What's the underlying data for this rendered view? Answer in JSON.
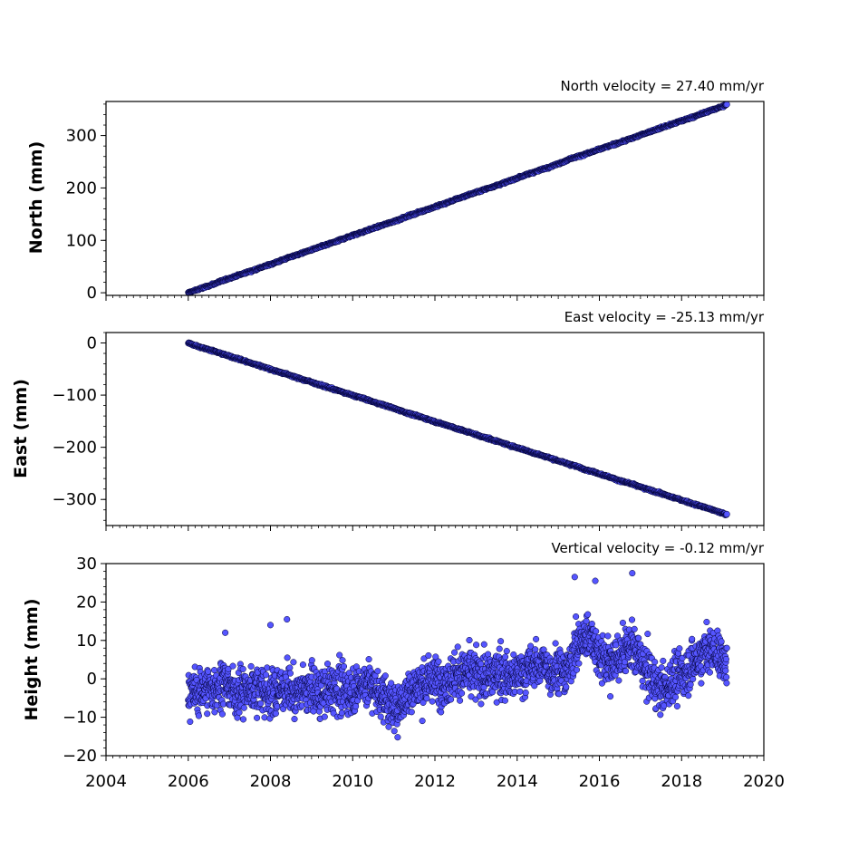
{
  "chart_data": [
    {
      "type": "scatter",
      "title": "North velocity = 27.40 mm/yr",
      "ylabel": "North (mm)",
      "xlabel": "",
      "xlim": [
        2004,
        2020
      ],
      "ylim": [
        -5,
        365
      ],
      "yticks": [
        0,
        100,
        200,
        300
      ],
      "ytick_labels": [
        "0",
        "100",
        "200",
        "300"
      ],
      "grid": false,
      "marker_color": "#5555ff",
      "marker_edge": "#000033",
      "series": [
        {
          "x": [
            2006.0,
            2006.3,
            2006.6,
            2006.9,
            2007.2,
            2007.5,
            2007.8,
            2008.1,
            2008.4,
            2008.7,
            2009.0,
            2009.3,
            2009.6,
            2009.9,
            2010.2,
            2010.5,
            2010.8,
            2011.1,
            2011.4,
            2011.7,
            2012.0,
            2012.3,
            2012.6,
            2012.9,
            2013.2,
            2013.5,
            2013.8,
            2014.1,
            2014.4,
            2014.7,
            2015.0,
            2015.3,
            2015.6,
            2015.9,
            2016.2,
            2016.5,
            2016.8,
            2017.1,
            2017.4,
            2017.7,
            2018.0,
            2018.3,
            2018.6,
            2018.9,
            2019.1
          ],
          "y": [
            0,
            8,
            16,
            25,
            33,
            41,
            49,
            57,
            66,
            74,
            82,
            90,
            98,
            107,
            115,
            123,
            131,
            139,
            148,
            156,
            164,
            172,
            181,
            189,
            197,
            205,
            213,
            222,
            230,
            238,
            246,
            256,
            263,
            271,
            279,
            287,
            295,
            304,
            312,
            320,
            328,
            336,
            345,
            353,
            359
          ]
        }
      ]
    },
    {
      "type": "scatter",
      "title": "East velocity = -25.13 mm/yr",
      "ylabel": "East (mm)",
      "xlabel": "",
      "xlim": [
        2004,
        2020
      ],
      "ylim": [
        -350,
        20
      ],
      "yticks": [
        0,
        -100,
        -200,
        -300
      ],
      "ytick_labels": [
        "0",
        "−100",
        "−200",
        "−300"
      ],
      "grid": false,
      "marker_color": "#5555ff",
      "marker_edge": "#000033",
      "series": [
        {
          "x": [
            2006.0,
            2006.3,
            2006.6,
            2006.9,
            2007.2,
            2007.5,
            2007.8,
            2008.1,
            2008.4,
            2008.7,
            2009.0,
            2009.3,
            2009.6,
            2009.9,
            2010.2,
            2010.5,
            2010.8,
            2011.1,
            2011.4,
            2011.7,
            2012.0,
            2012.3,
            2012.6,
            2012.9,
            2013.2,
            2013.5,
            2013.8,
            2014.1,
            2014.4,
            2014.7,
            2015.0,
            2015.3,
            2015.6,
            2015.9,
            2016.2,
            2016.5,
            2016.8,
            2017.1,
            2017.4,
            2017.7,
            2018.0,
            2018.3,
            2018.6,
            2018.9,
            2019.1
          ],
          "y": [
            0,
            -8,
            -15,
            -23,
            -30,
            -38,
            -45,
            -53,
            -60,
            -68,
            -75,
            -83,
            -90,
            -98,
            -105,
            -113,
            -120,
            -128,
            -136,
            -143,
            -151,
            -158,
            -166,
            -173,
            -181,
            -188,
            -196,
            -203,
            -211,
            -218,
            -226,
            -233,
            -241,
            -248,
            -256,
            -264,
            -271,
            -279,
            -286,
            -294,
            -301,
            -309,
            -316,
            -324,
            -329
          ]
        }
      ]
    },
    {
      "type": "scatter",
      "title": "Vertical velocity = -0.12 mm/yr",
      "ylabel": "Height (mm)",
      "xlabel": "",
      "xlim": [
        2004,
        2020
      ],
      "ylim": [
        -20,
        30
      ],
      "yticks": [
        -20,
        -10,
        0,
        10,
        20,
        30
      ],
      "ytick_labels": [
        "−20",
        "−10",
        "0",
        "10",
        "20",
        "30"
      ],
      "xticks": [
        2004,
        2006,
        2008,
        2010,
        2012,
        2014,
        2016,
        2018,
        2020
      ],
      "xtick_labels": [
        "2004",
        "2006",
        "2008",
        "2010",
        "2012",
        "2014",
        "2016",
        "2018",
        "2020"
      ],
      "grid": false,
      "marker_color": "#5555ff",
      "marker_edge": "#000033",
      "series": [
        {
          "x": [
            2006.0,
            2006.2,
            2006.4,
            2006.6,
            2006.8,
            2007.0,
            2007.2,
            2007.4,
            2007.6,
            2007.8,
            2008.0,
            2008.2,
            2008.4,
            2008.6,
            2008.8,
            2009.0,
            2009.2,
            2009.4,
            2009.6,
            2009.8,
            2010.0,
            2010.2,
            2010.4,
            2010.6,
            2010.8,
            2011.0,
            2011.2,
            2011.4,
            2011.6,
            2011.8,
            2012.0,
            2012.2,
            2012.4,
            2012.6,
            2012.8,
            2013.0,
            2013.2,
            2013.4,
            2013.6,
            2013.8,
            2014.0,
            2014.2,
            2014.4,
            2014.6,
            2014.8,
            2015.0,
            2015.2,
            2015.4,
            2015.6,
            2015.8,
            2016.0,
            2016.2,
            2016.4,
            2016.6,
            2016.8,
            2017.0,
            2017.2,
            2017.4,
            2017.6,
            2017.8,
            2018.0,
            2018.2,
            2018.4,
            2018.6,
            2018.8,
            2019.0,
            2019.1
          ],
          "y": [
            -3,
            -4,
            -2,
            -3,
            -1,
            -2,
            -4,
            -3,
            -2,
            -3,
            -4,
            -3,
            -2,
            -4,
            -3,
            -2,
            -4,
            -3,
            -2,
            -3,
            -3,
            -2,
            -1,
            -3,
            -5,
            -8,
            -6,
            -3,
            -2,
            -1,
            0,
            -1,
            0,
            1,
            2,
            1,
            0,
            1,
            2,
            0,
            1,
            2,
            3,
            4,
            2,
            3,
            1,
            8,
            10,
            12,
            6,
            4,
            5,
            7,
            8,
            5,
            1,
            -2,
            -3,
            0,
            1,
            3,
            5,
            8,
            7,
            6,
            3
          ]
        }
      ]
    },
    {
      "type": "scatter",
      "title": "",
      "series": [
        {
          "x": [
            2006.9,
            2008.0,
            2008.4,
            2015.4,
            2015.9,
            2016.8
          ],
          "y": [
            12,
            14,
            15.5,
            26.5,
            25.5,
            27.5
          ]
        }
      ]
    }
  ]
}
